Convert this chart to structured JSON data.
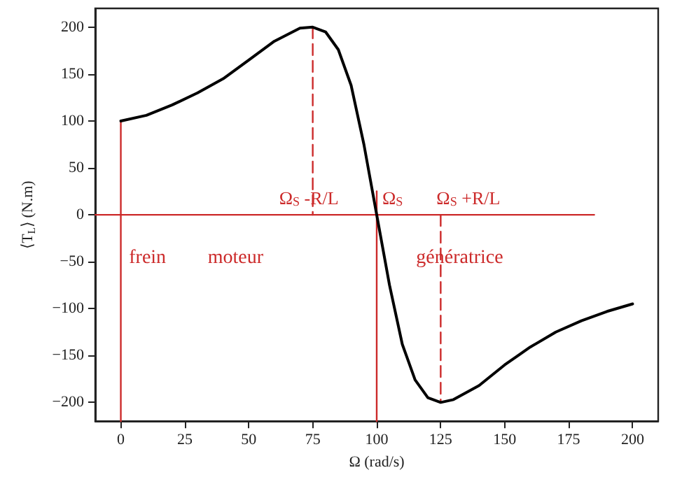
{
  "chart_data": {
    "type": "line",
    "xlabel": "Ω (rad/s)",
    "ylabel": "⟨T$_{L}$⟩ (N.m)",
    "xlim": [
      -10,
      210
    ],
    "xticks": [
      0,
      25,
      50,
      75,
      100,
      125,
      150,
      175,
      200
    ],
    "ylim": [
      -220,
      220
    ],
    "yticks": [
      -200,
      -150,
      -100,
      -50,
      0,
      50,
      100,
      150,
      200
    ],
    "grid": false,
    "marker": "none",
    "series": [
      {
        "color": "#000000",
        "x": [
          0,
          10,
          20,
          30,
          40,
          50,
          60,
          70,
          75,
          80,
          85,
          90,
          95,
          100,
          105,
          110,
          115,
          120,
          125,
          130,
          140,
          150,
          160,
          170,
          180,
          190,
          200
        ],
        "values": [
          100,
          106,
          117,
          130,
          145,
          165,
          185,
          199,
          200,
          195,
          176,
          138,
          75,
          0,
          -75,
          -138,
          -176,
          -195,
          -200,
          -197,
          -182,
          -160,
          -141,
          -125,
          -113,
          -103,
          -95
        ]
      },
      {
        "color": "#cc2a2a",
        "x": [
          -10,
          185
        ],
        "values": [
          0,
          0
        ]
      },
      {
        "color": "#cc2a2a",
        "x": [
          0,
          0
        ],
        "values": [
          100,
          -220
        ]
      },
      {
        "color": "#cc2a2a",
        "x": [
          100,
          100
        ],
        "values": [
          25,
          -220
        ]
      },
      {
        "color": "#cc2a2a",
        "x": [
          75,
          75
        ],
        "values": [
          200,
          0
        ],
        "line_style": "dashed"
      },
      {
        "color": "#cc2a2a",
        "x": [
          125,
          125
        ],
        "values": [
          0,
          -200
        ],
        "line_style": "dashed"
      }
    ],
    "annotations": [
      {
        "text": "Ω$_{S}$ -R/L",
        "x": 75,
        "y": 0
      },
      {
        "text": "Ω$_{S}$",
        "x": 100,
        "y": 0
      },
      {
        "text": "Ω$_{S}$ +R/L",
        "x": 125,
        "y": 0
      },
      "frein",
      "moteur",
      "génératrice"
    ]
  }
}
